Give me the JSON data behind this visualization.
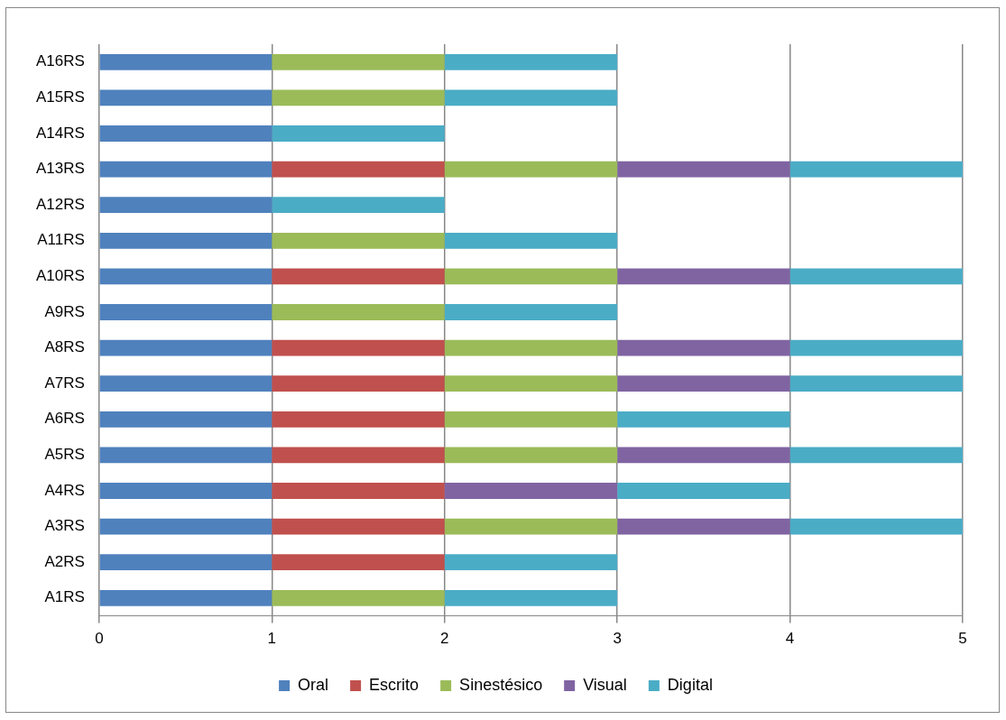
{
  "chart_data": {
    "type": "bar",
    "orientation": "horizontal",
    "stacked": true,
    "categories": [
      "A16RS",
      "A15RS",
      "A14RS",
      "A13RS",
      "A12RS",
      "A11RS",
      "A10RS",
      "A9RS",
      "A8RS",
      "A7RS",
      "A6RS",
      "A5RS",
      "A4RS",
      "A3RS",
      "A2RS",
      "A1RS"
    ],
    "series": [
      {
        "name": "Oral",
        "color": "#4f81bd",
        "values": [
          1,
          1,
          1,
          1,
          1,
          1,
          1,
          1,
          1,
          1,
          1,
          1,
          1,
          1,
          1,
          1
        ]
      },
      {
        "name": "Escrito",
        "color": "#c0504d",
        "values": [
          null,
          null,
          null,
          1,
          null,
          null,
          1,
          null,
          1,
          1,
          1,
          1,
          1,
          1,
          1,
          null
        ]
      },
      {
        "name": "Sinestésico",
        "color": "#9bbb59",
        "values": [
          1,
          1,
          null,
          1,
          null,
          1,
          1,
          1,
          1,
          1,
          1,
          1,
          null,
          1,
          null,
          1
        ]
      },
      {
        "name": "Visual",
        "color": "#8064a2",
        "values": [
          null,
          null,
          null,
          1,
          null,
          null,
          1,
          null,
          1,
          1,
          null,
          1,
          1,
          1,
          null,
          null
        ]
      },
      {
        "name": "Digital",
        "color": "#4bacc6",
        "values": [
          1,
          1,
          1,
          1,
          1,
          1,
          1,
          1,
          1,
          1,
          1,
          1,
          1,
          1,
          1,
          1
        ]
      }
    ],
    "xlim": [
      0,
      5
    ],
    "xticks": [
      0,
      1,
      2,
      3,
      4,
      5
    ],
    "grid": "x",
    "legend": "bottom"
  }
}
